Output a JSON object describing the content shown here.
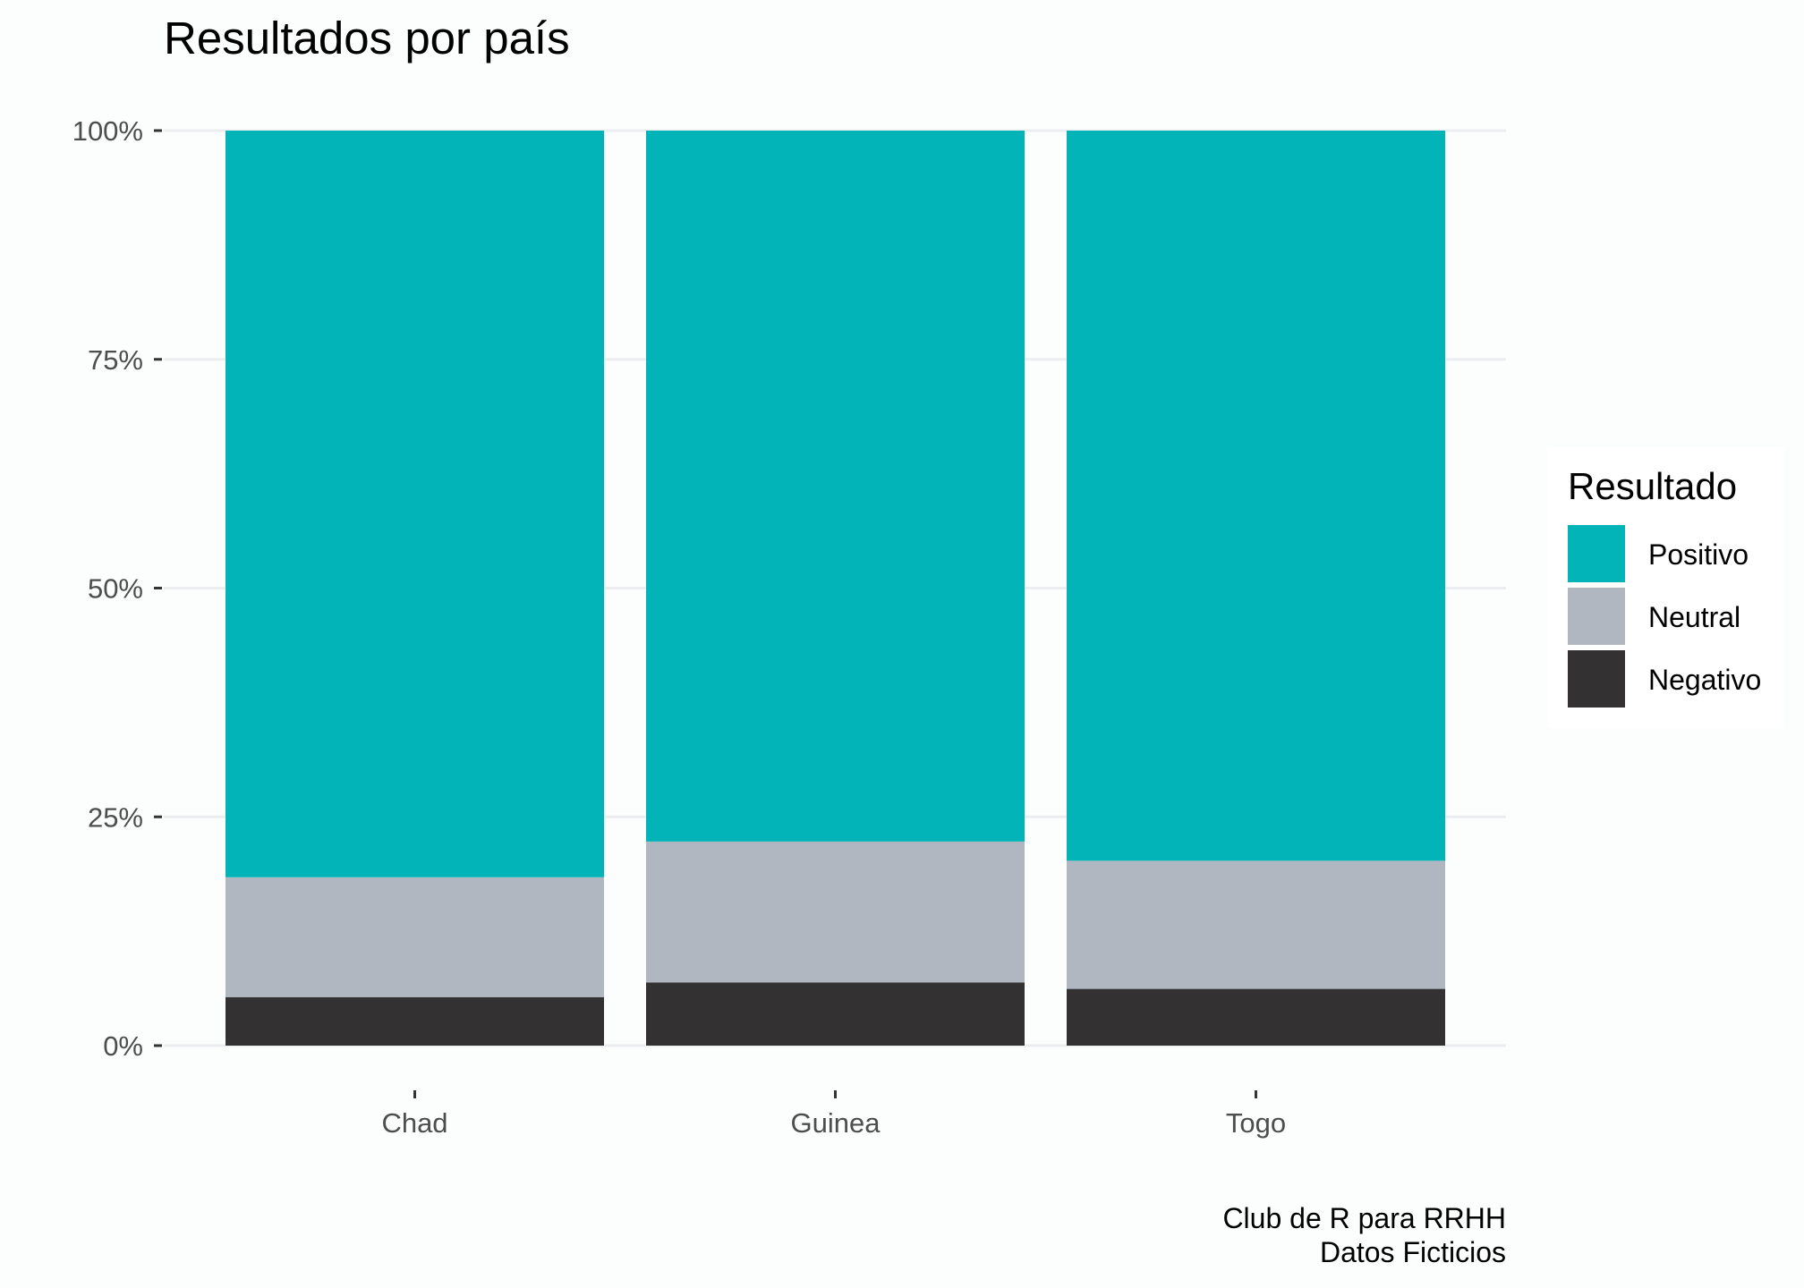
{
  "chart_data": {
    "type": "bar",
    "stacked": true,
    "normalized": true,
    "title": "Resultados por país",
    "xlabel": "",
    "ylabel": "",
    "categories": [
      "Chad",
      "Guinea",
      "Togo"
    ],
    "series": [
      {
        "name": "Negativo",
        "values": [
          5.3,
          6.9,
          6.2
        ]
      },
      {
        "name": "Neutral",
        "values": [
          13.1,
          15.4,
          14.0
        ]
      },
      {
        "name": "Positivo",
        "values": [
          81.6,
          77.7,
          79.8
        ]
      }
    ],
    "ylim": [
      0,
      100
    ],
    "yticks": [
      0,
      25,
      50,
      75,
      100
    ],
    "ytick_labels": [
      "0%",
      "25%",
      "50%",
      "75%",
      "100%"
    ],
    "grid": true,
    "legend": {
      "title": "Resultado",
      "position": "right",
      "entries": [
        "Positivo",
        "Neutral",
        "Negativo"
      ]
    },
    "caption": [
      "Club de R para RRHH",
      "Datos Ficticios"
    ],
    "colors": {
      "Positivo": "#02b3b7",
      "Neutral": "#b0b7c0",
      "Negativo": "#333132",
      "grid": "#ebedee",
      "background": "#fcfdfd"
    }
  }
}
